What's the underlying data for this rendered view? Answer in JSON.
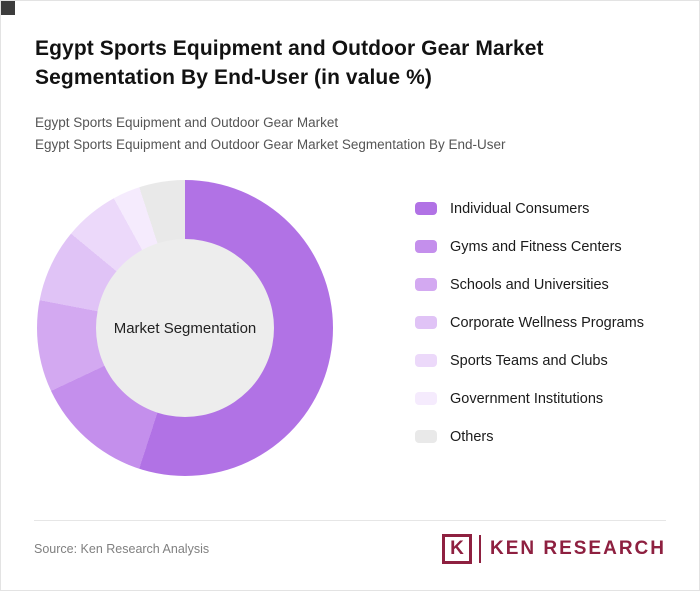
{
  "header": {
    "title_line1": "Egypt Sports Equipment and Outdoor Gear Market",
    "title_line2": "Segmentation By End-User (in value %)",
    "subtitle1": "Egypt Sports Equipment and Outdoor Gear Market",
    "subtitle2": "Egypt Sports Equipment and Outdoor Gear Market Segmentation By End-User"
  },
  "chart_data": {
    "type": "pie",
    "donut": true,
    "title": "Egypt Sports Equipment and Outdoor Gear Market Segmentation By End-User (in value %)",
    "center_label": "Market Segmentation",
    "legend_position": "right",
    "start_angle_deg": 0,
    "direction": "clockwise",
    "hole_color": "#ededed",
    "segments": [
      {
        "label": "Individual Consumers",
        "value": 55,
        "color": "#b172e5"
      },
      {
        "label": "Gyms and Fitness Centers",
        "value": 13,
        "color": "#c48fec"
      },
      {
        "label": "Schools and Universities",
        "value": 10,
        "color": "#d3a9f1"
      },
      {
        "label": "Corporate Wellness Programs",
        "value": 8,
        "color": "#e0c3f6"
      },
      {
        "label": "Sports Teams and Clubs",
        "value": 6,
        "color": "#ecd9fa"
      },
      {
        "label": "Government Institutions",
        "value": 3,
        "color": "#f5ebfd"
      },
      {
        "label": "Others",
        "value": 5,
        "color": "#e9e9e9"
      }
    ]
  },
  "footer": {
    "source": "Source: Ken Research Analysis",
    "logo_mark": "K",
    "logo_text": "KEN RESEARCH"
  }
}
